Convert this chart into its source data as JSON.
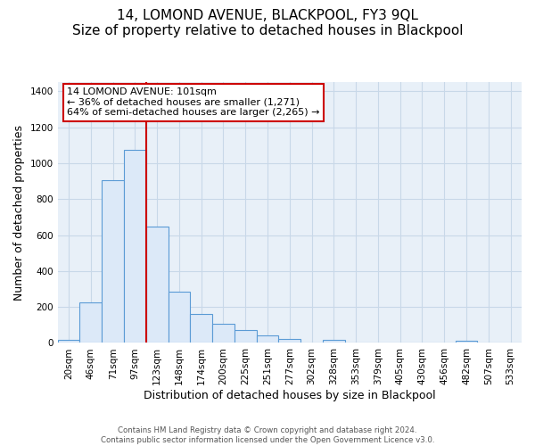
{
  "title": "14, LOMOND AVENUE, BLACKPOOL, FY3 9QL",
  "subtitle": "Size of property relative to detached houses in Blackpool",
  "xlabel": "Distribution of detached houses by size in Blackpool",
  "ylabel": "Number of detached properties",
  "bin_labels": [
    "20sqm",
    "46sqm",
    "71sqm",
    "97sqm",
    "123sqm",
    "148sqm",
    "174sqm",
    "200sqm",
    "225sqm",
    "251sqm",
    "277sqm",
    "302sqm",
    "328sqm",
    "353sqm",
    "379sqm",
    "405sqm",
    "430sqm",
    "456sqm",
    "482sqm",
    "507sqm",
    "533sqm"
  ],
  "bin_values": [
    15,
    228,
    905,
    1075,
    650,
    287,
    160,
    107,
    72,
    40,
    22,
    0,
    18,
    0,
    0,
    0,
    0,
    0,
    12,
    0,
    0
  ],
  "bar_color": "#dce9f8",
  "bar_edge_color": "#5b9bd5",
  "vline_color": "#cc0000",
  "vline_x_index": 3.5,
  "annotation_title": "14 LOMOND AVENUE: 101sqm",
  "annotation_line1": "← 36% of detached houses are smaller (1,271)",
  "annotation_line2": "64% of semi-detached houses are larger (2,265) →",
  "annotation_box_color": "#ffffff",
  "annotation_box_edge_color": "#cc0000",
  "ylim": [
    0,
    1450
  ],
  "yticks": [
    0,
    200,
    400,
    600,
    800,
    1000,
    1200,
    1400
  ],
  "grid_color": "#c8d8e8",
  "bg_color": "#e8f0f8",
  "footer1": "Contains HM Land Registry data © Crown copyright and database right 2024.",
  "footer2": "Contains public sector information licensed under the Open Government Licence v3.0.",
  "title_fontsize": 11,
  "subtitle_fontsize": 10,
  "label_fontsize": 9,
  "tick_fontsize": 7.5,
  "annot_fontsize": 8
}
